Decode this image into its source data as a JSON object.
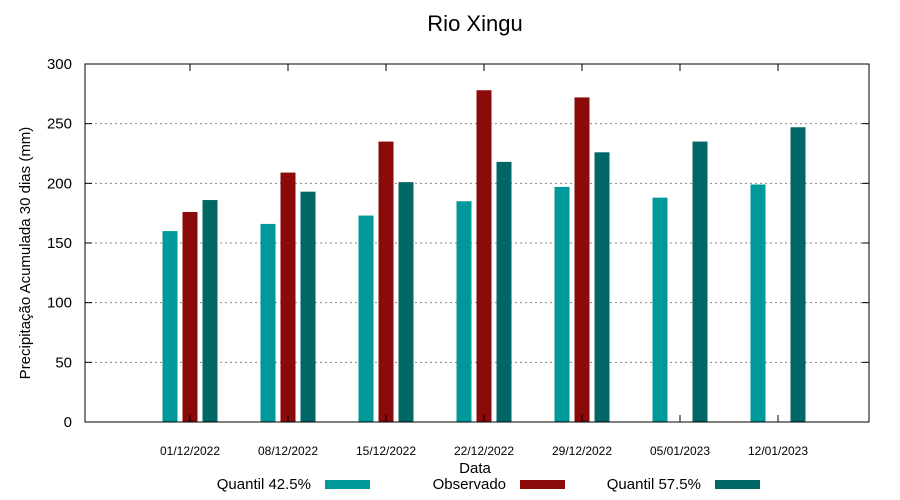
{
  "chart_data": {
    "type": "bar",
    "title": "Rio Xingu",
    "xlabel": "Data",
    "ylabel": "Precipitação Acumulada 30 dias (mm)",
    "ylim": [
      0,
      300
    ],
    "yticks": [
      "0",
      "50",
      "100",
      "150",
      "200",
      "250",
      "300"
    ],
    "grid": true,
    "legend_position": "bottom",
    "categories": [
      "01/12/2022",
      "08/12/2022",
      "15/12/2022",
      "22/12/2022",
      "29/12/2022",
      "05/01/2023",
      "12/01/2023"
    ],
    "series": [
      {
        "name": "Quantil 42.5%",
        "color": "#009999",
        "values": [
          160,
          166,
          173,
          185,
          197,
          188,
          199
        ]
      },
      {
        "name": "Observado",
        "color": "#8b0a0a",
        "values": [
          176,
          209,
          235,
          278,
          272,
          null,
          null
        ]
      },
      {
        "name": "Quantil 57.5%",
        "color": "#006666",
        "values": [
          186,
          193,
          201,
          218,
          226,
          235,
          247
        ]
      }
    ]
  }
}
